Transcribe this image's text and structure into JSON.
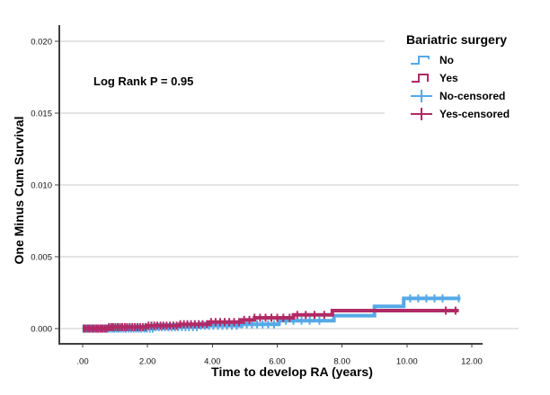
{
  "figure": {
    "y_axis_title": "One Minus Cum Survival",
    "x_axis_title": "Time to develop RA (years)",
    "annotation": "Log Rank P = 0.95"
  },
  "chart_data": {
    "type": "line",
    "subtype": "step-survival (one minus Kaplan-Meier cumulative survival)",
    "title": "",
    "xlabel": "Time to develop RA (years)",
    "ylabel": "One Minus Cum Survival",
    "annotation": "Log Rank P = 0.95",
    "xlim": [
      -0.7,
      12.3
    ],
    "ylim": [
      0,
      0.021
    ],
    "grid": "horizontal",
    "legend_position": "top-right",
    "x_ticks": [
      0,
      2,
      4,
      6,
      8,
      10,
      12
    ],
    "x_tick_labels": [
      ".00",
      "2.00",
      "4.00",
      "6.00",
      "8.00",
      "10.00",
      "12.00"
    ],
    "y_ticks": [
      0,
      0.005,
      0.01,
      0.015,
      0.02
    ],
    "y_tick_labels": [
      "0.000",
      "0.005",
      "0.010",
      "0.015",
      "0.020"
    ],
    "colors": {
      "no": "#55A9E8",
      "yes": "#B02A66",
      "grid": "#c9c9c9",
      "axis": "#3f3f3f"
    },
    "legend": {
      "title": "Bariatric surgery",
      "entries": [
        {
          "label": "No",
          "color": "#55A9E8",
          "glyph": "step-line"
        },
        {
          "label": "Yes",
          "color": "#B02A66",
          "glyph": "step-line"
        },
        {
          "label": "No-censored",
          "color": "#55A9E8",
          "glyph": "plus"
        },
        {
          "label": "Yes-censored",
          "color": "#B02A66",
          "glyph": "plus"
        }
      ]
    },
    "series": [
      {
        "name": "No",
        "color": "#55A9E8",
        "steps": [
          [
            0,
            0
          ],
          [
            2.2,
            0.0001
          ],
          [
            3.6,
            0.0002
          ],
          [
            4.9,
            0.0003
          ],
          [
            6.05,
            0.00055
          ],
          [
            7.75,
            0.0009
          ],
          [
            9.0,
            0.00155
          ],
          [
            9.9,
            0.0021
          ],
          [
            11.65,
            0.0021
          ]
        ],
        "censored": [
          0.02,
          0.06,
          0.13,
          0.19,
          0.26,
          0.32,
          0.39,
          0.45,
          0.52,
          0.58,
          0.65,
          0.71,
          0.78,
          0.84,
          0.91,
          0.97,
          1.04,
          1.11,
          1.18,
          1.26,
          1.33,
          1.41,
          1.49,
          1.57,
          1.65,
          1.73,
          1.81,
          1.9,
          1.98,
          2.07,
          2.16,
          2.25,
          2.35,
          2.44,
          2.54,
          2.64,
          2.74,
          2.85,
          2.95,
          3.06,
          3.17,
          3.28,
          3.4,
          3.52,
          3.64,
          3.77,
          3.9,
          4.03,
          4.17,
          4.31,
          4.45,
          4.6,
          4.75,
          4.9,
          5.06,
          5.22,
          5.38,
          5.55,
          5.72,
          5.9,
          6.08,
          6.27,
          6.5,
          6.75,
          7.0,
          7.3,
          10.1,
          10.35,
          10.6,
          10.85,
          11.1,
          11.6
        ]
      },
      {
        "name": "Yes",
        "color": "#B02A66",
        "steps": [
          [
            0,
            0
          ],
          [
            0.8,
            0.0001
          ],
          [
            2.0,
            0.0002
          ],
          [
            3.0,
            0.0003
          ],
          [
            3.9,
            0.00045
          ],
          [
            4.9,
            0.0006
          ],
          [
            5.3,
            0.00075
          ],
          [
            6.5,
            0.00095
          ],
          [
            7.7,
            0.00125
          ],
          [
            11.6,
            0.00125
          ]
        ],
        "censored": [
          0.04,
          0.09,
          0.16,
          0.22,
          0.29,
          0.35,
          0.42,
          0.48,
          0.55,
          0.61,
          0.68,
          0.74,
          0.81,
          0.88,
          0.94,
          1.01,
          1.08,
          1.15,
          1.22,
          1.3,
          1.37,
          1.45,
          1.53,
          1.61,
          1.69,
          1.77,
          1.86,
          1.94,
          2.03,
          2.12,
          2.21,
          2.3,
          2.4,
          2.49,
          2.59,
          2.69,
          2.8,
          2.9,
          3.01,
          3.12,
          3.23,
          3.34,
          3.46,
          3.58,
          3.7,
          3.83,
          3.96,
          4.1,
          4.24,
          4.38,
          4.52,
          4.67,
          4.82,
          4.98,
          5.14,
          5.3,
          5.47,
          5.64,
          5.82,
          6.0,
          6.19,
          6.38,
          6.62,
          6.88,
          7.15,
          7.45,
          11.2,
          11.5
        ]
      }
    ]
  }
}
